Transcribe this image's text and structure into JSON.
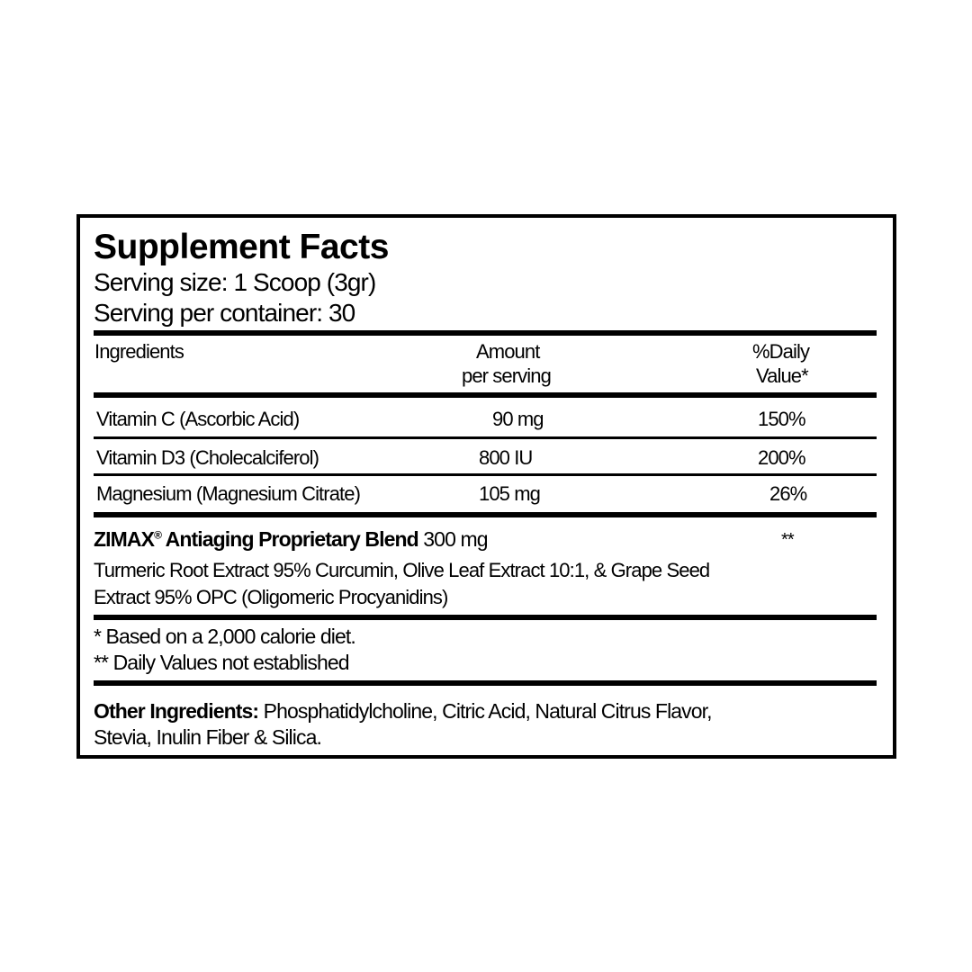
{
  "title": "Supplement Facts",
  "serving_size": "Serving size: 1 Scoop (3gr)",
  "servings_per_container": "Serving per container: 30",
  "table": {
    "headers": {
      "ingredients": "Ingredients",
      "amount_line1": "Amount",
      "amount_line2": "per serving",
      "dv_line1": "%Daily",
      "dv_line2": "Value*"
    },
    "rows": [
      {
        "name": "Vitamin C (Ascorbic Acid)",
        "amount": "90 mg",
        "dv": "150%"
      },
      {
        "name": "Vitamin D3 (Cholecalciferol)",
        "amount": "800 IU",
        "dv": "200%"
      },
      {
        "name": "Magnesium (Magnesium Citrate)",
        "amount": "105 mg",
        "dv": "26%"
      }
    ]
  },
  "blend": {
    "brand": "ZIMAX",
    "registered": "®",
    "name": " Antiaging Proprietary Blend",
    "amount": "300 mg",
    "dv": "**",
    "line1": "Turmeric Root Extract 95% Curcumin, Olive Leaf Extract 10:1, & Grape Seed",
    "line2": "Extract 95% OPC (Oligomeric Procyanidins)"
  },
  "footnotes": [
    "* Based on a 2,000 calorie diet.",
    "** Daily Values not established"
  ],
  "other_ingredients": {
    "label": "Other Ingredients:",
    "line1": " Phosphatidylcholine, Citric Acid, Natural Citrus Flavor,",
    "line2": "Stevia, Inulin Fiber & Silica."
  }
}
